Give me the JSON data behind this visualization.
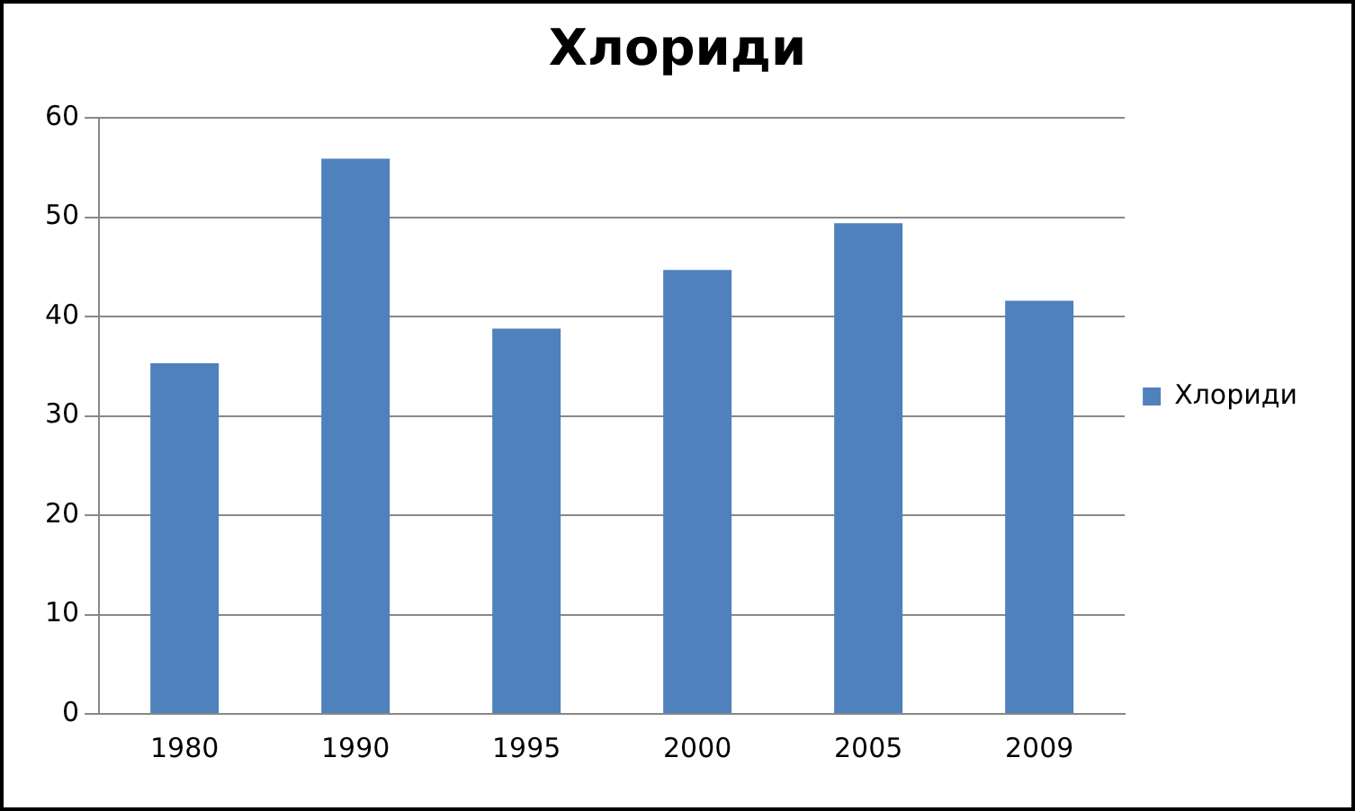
{
  "chart_data": {
    "type": "bar",
    "title": "Хлориди",
    "categories": [
      "1980",
      "1990",
      "1995",
      "2000",
      "2005",
      "2009"
    ],
    "series": [
      {
        "name": "Хлориди",
        "color": "#4f81bd",
        "values": [
          35.3,
          55.9,
          38.8,
          44.7,
          49.4,
          41.6
        ]
      }
    ],
    "ylim": [
      0,
      60
    ],
    "yticks": [
      0,
      10,
      20,
      30,
      40,
      50,
      60
    ],
    "grid": "y",
    "legend": "right"
  }
}
